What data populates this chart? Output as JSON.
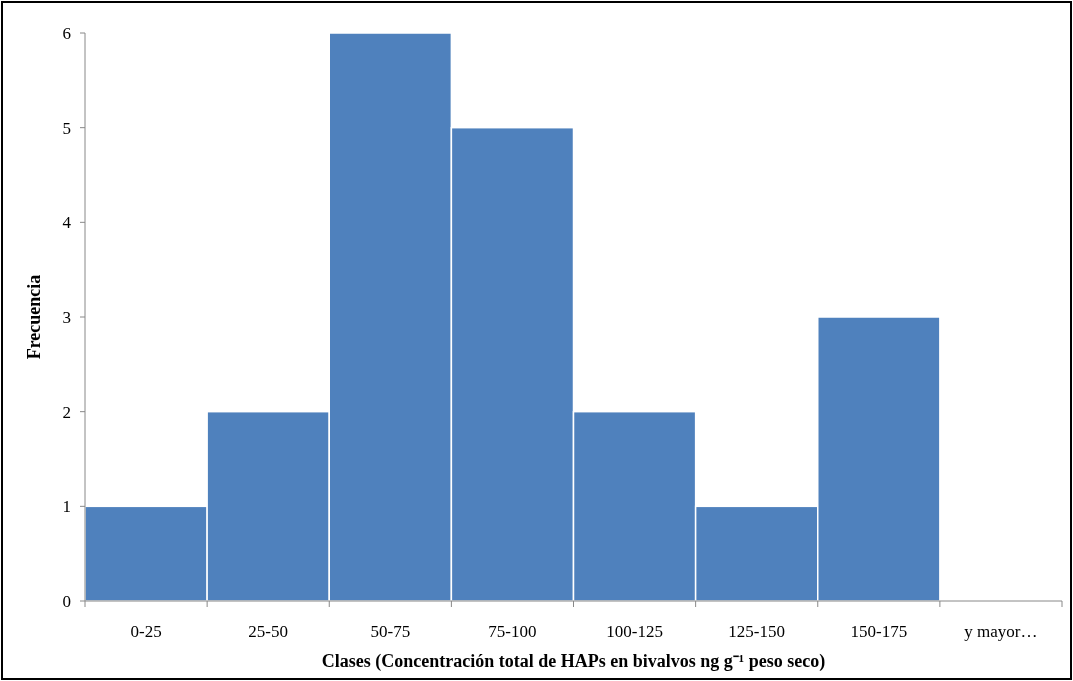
{
  "chart_data": {
    "type": "bar",
    "categories": [
      "0-25",
      "25-50",
      "50-75",
      "75-100",
      "100-125",
      "125-150",
      "150-175",
      "y mayor…"
    ],
    "values": [
      1,
      2,
      6,
      5,
      2,
      1,
      3,
      0
    ],
    "color": "#4f81bd",
    "xlabel": "Clases (Concentración total de HAPs  en bivalvos ng g⁻¹ peso seco)",
    "ylabel": "Frecuencia",
    "ylim": [
      0,
      6
    ],
    "yticks": [
      0,
      1,
      2,
      3,
      4,
      5,
      6
    ]
  }
}
